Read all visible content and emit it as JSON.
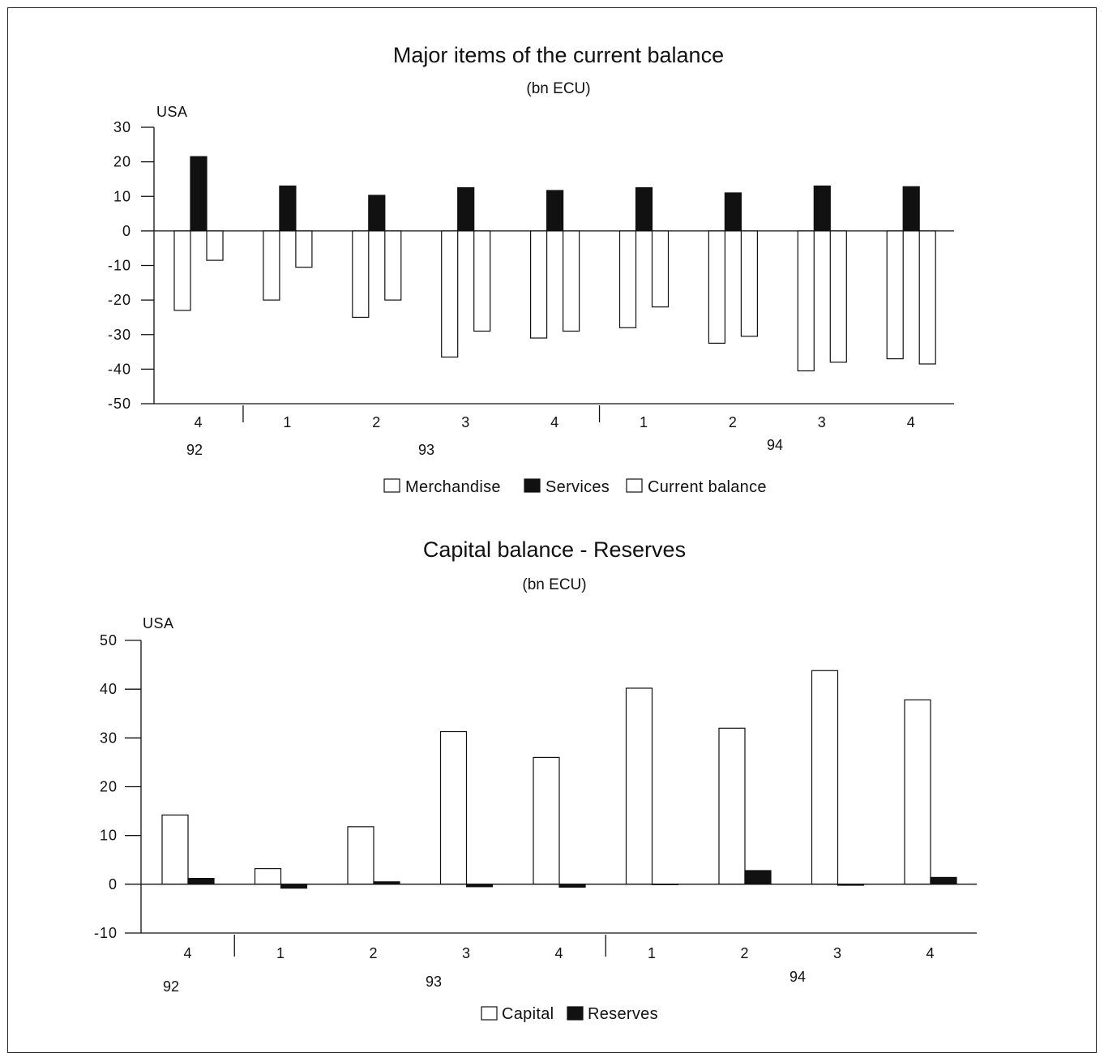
{
  "chart_data": [
    {
      "type": "bar",
      "title": "Major items of the current balance",
      "subtitle": "(bn ECU)",
      "region_label": "USA",
      "ylim": [
        -50,
        30
      ],
      "yticks": [
        30,
        20,
        10,
        0,
        -10,
        -20,
        -30,
        -40,
        -50
      ],
      "categories": [
        "4",
        "1",
        "2",
        "3",
        "4",
        "1",
        "2",
        "3",
        "4"
      ],
      "year_labels": [
        "92",
        "93",
        "94"
      ],
      "series": [
        {
          "name": "Merchandise",
          "fill": "white",
          "values": [
            -23,
            -20,
            -25,
            -36.5,
            -31,
            -28,
            -32.5,
            -40.5,
            -37
          ]
        },
        {
          "name": "Services",
          "fill": "black",
          "values": [
            21.5,
            13,
            10.3,
            12.5,
            11.7,
            12.5,
            11,
            13,
            12.8
          ]
        },
        {
          "name": "Current balance",
          "fill": "white",
          "values": [
            -8.5,
            -10.5,
            -20,
            -29,
            -29,
            -22,
            -30.5,
            -38,
            -38.5
          ]
        }
      ],
      "legend_position": "bottom-center"
    },
    {
      "type": "bar",
      "title": "Capital balance - Reserves",
      "subtitle": "(bn ECU)",
      "region_label": "USA",
      "ylim": [
        -10,
        50
      ],
      "yticks": [
        50,
        40,
        30,
        20,
        10,
        0,
        -10
      ],
      "categories": [
        "4",
        "1",
        "2",
        "3",
        "4",
        "1",
        "2",
        "3",
        "4"
      ],
      "year_labels": [
        "92",
        "93",
        "94"
      ],
      "series": [
        {
          "name": "Capital",
          "fill": "white",
          "values": [
            14.2,
            3.2,
            11.8,
            31.3,
            26,
            40.2,
            32,
            43.8,
            37.8
          ]
        },
        {
          "name": "Reserves",
          "fill": "black",
          "values": [
            1.2,
            -0.8,
            0.5,
            -0.5,
            -0.6,
            0,
            2.8,
            -0.2,
            1.4
          ]
        }
      ],
      "legend_position": "bottom-center"
    }
  ]
}
